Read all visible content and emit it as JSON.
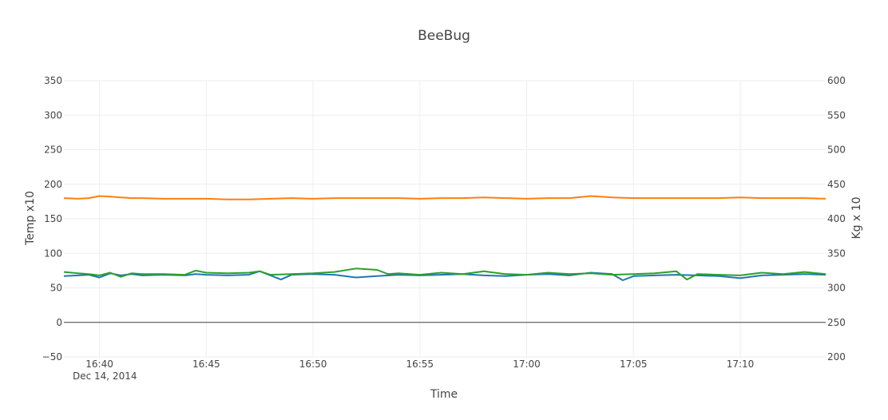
{
  "chart_data": {
    "type": "line",
    "title": "BeeBug",
    "xlabel": "Time",
    "ylabel": "Temp x10",
    "y2label": "Kg x 10",
    "date_label": "Dec 14, 2014",
    "xlim": [
      "16:38:20",
      "17:14:00"
    ],
    "ylim": [
      -50,
      350
    ],
    "y2lim": [
      200,
      600
    ],
    "x_ticks": [
      "16:40",
      "16:45",
      "16:50",
      "16:55",
      "17:00",
      "17:05",
      "17:10"
    ],
    "y_ticks": [
      "−50",
      "0",
      "50",
      "100",
      "150",
      "200",
      "250",
      "300",
      "350"
    ],
    "y2_ticks": [
      "200",
      "250",
      "300",
      "350",
      "400",
      "450",
      "500",
      "550",
      "600"
    ],
    "grid": true,
    "zero_line": true,
    "legend": "none",
    "series": [
      {
        "color": "#ff7f0e",
        "axis": "y2",
        "x": [
          "16:38:20",
          "16:39:00",
          "16:39:30",
          "16:40:00",
          "16:40:30",
          "16:41:00",
          "16:41:30",
          "16:42:00",
          "16:43:00",
          "16:44:00",
          "16:45:00",
          "16:46:00",
          "16:47:00",
          "16:48:00",
          "16:49:00",
          "16:50:00",
          "16:51:00",
          "16:52:00",
          "16:53:00",
          "16:54:00",
          "16:55:00",
          "16:56:00",
          "16:57:00",
          "16:58:00",
          "16:59:00",
          "17:00:00",
          "17:01:00",
          "17:02:00",
          "17:03:00",
          "17:04:00",
          "17:05:00",
          "17:06:00",
          "17:07:00",
          "17:08:00",
          "17:09:00",
          "17:10:00",
          "17:11:00",
          "17:12:00",
          "17:13:00",
          "17:14:00"
        ],
        "values": [
          430,
          429,
          430,
          433,
          432,
          431,
          430,
          430,
          429,
          429,
          429,
          428,
          428,
          429,
          430,
          429,
          430,
          430,
          430,
          430,
          429,
          430,
          430,
          431,
          430,
          429,
          430,
          430,
          433,
          431,
          430,
          430,
          430,
          430,
          430,
          431,
          430,
          430,
          430,
          429
        ]
      },
      {
        "color": "#1f77b4",
        "axis": "y",
        "x": [
          "16:38:20",
          "16:39:00",
          "16:39:30",
          "16:40:00",
          "16:40:30",
          "16:41:00",
          "16:41:30",
          "16:42:00",
          "16:43:00",
          "16:44:00",
          "16:44:30",
          "16:45:00",
          "16:46:00",
          "16:47:00",
          "16:47:30",
          "16:48:00",
          "16:48:30",
          "16:49:00",
          "16:50:00",
          "16:51:00",
          "16:52:00",
          "16:53:00",
          "16:54:00",
          "16:55:00",
          "16:56:00",
          "16:57:00",
          "16:58:00",
          "16:59:00",
          "17:00:00",
          "17:01:00",
          "17:02:00",
          "17:03:00",
          "17:04:00",
          "17:04:30",
          "17:05:00",
          "17:06:00",
          "17:07:00",
          "17:08:00",
          "17:09:00",
          "17:10:00",
          "17:11:00",
          "17:12:00",
          "17:13:00",
          "17:14:00"
        ],
        "values": [
          67,
          68,
          69,
          65,
          71,
          68,
          70,
          68,
          69,
          68,
          70,
          69,
          68,
          69,
          74,
          68,
          62,
          69,
          70,
          69,
          65,
          67,
          69,
          68,
          69,
          70,
          68,
          67,
          69,
          70,
          68,
          72,
          70,
          61,
          67,
          68,
          69,
          68,
          67,
          64,
          68,
          69,
          70,
          69
        ]
      },
      {
        "color": "#2ca02c",
        "axis": "y",
        "x": [
          "16:38:20",
          "16:39:00",
          "16:39:30",
          "16:40:00",
          "16:40:30",
          "16:41:00",
          "16:41:30",
          "16:42:00",
          "16:43:00",
          "16:44:00",
          "16:44:30",
          "16:45:00",
          "16:46:00",
          "16:47:00",
          "16:47:30",
          "16:48:00",
          "16:49:00",
          "16:50:00",
          "16:51:00",
          "16:52:00",
          "16:53:00",
          "16:53:30",
          "16:54:00",
          "16:55:00",
          "16:56:00",
          "16:57:00",
          "16:58:00",
          "16:59:00",
          "17:00:00",
          "17:01:00",
          "17:02:00",
          "17:03:00",
          "17:04:00",
          "17:05:00",
          "17:06:00",
          "17:07:00",
          "17:07:30",
          "17:08:00",
          "17:09:00",
          "17:10:00",
          "17:11:00",
          "17:12:00",
          "17:13:00",
          "17:14:00"
        ],
        "values": [
          73,
          71,
          70,
          68,
          72,
          66,
          71,
          70,
          70,
          69,
          75,
          72,
          71,
          72,
          74,
          69,
          70,
          71,
          73,
          78,
          76,
          70,
          71,
          69,
          72,
          70,
          74,
          70,
          69,
          72,
          70,
          71,
          69,
          70,
          71,
          74,
          62,
          70,
          69,
          68,
          72,
          70,
          73,
          70
        ]
      }
    ]
  }
}
